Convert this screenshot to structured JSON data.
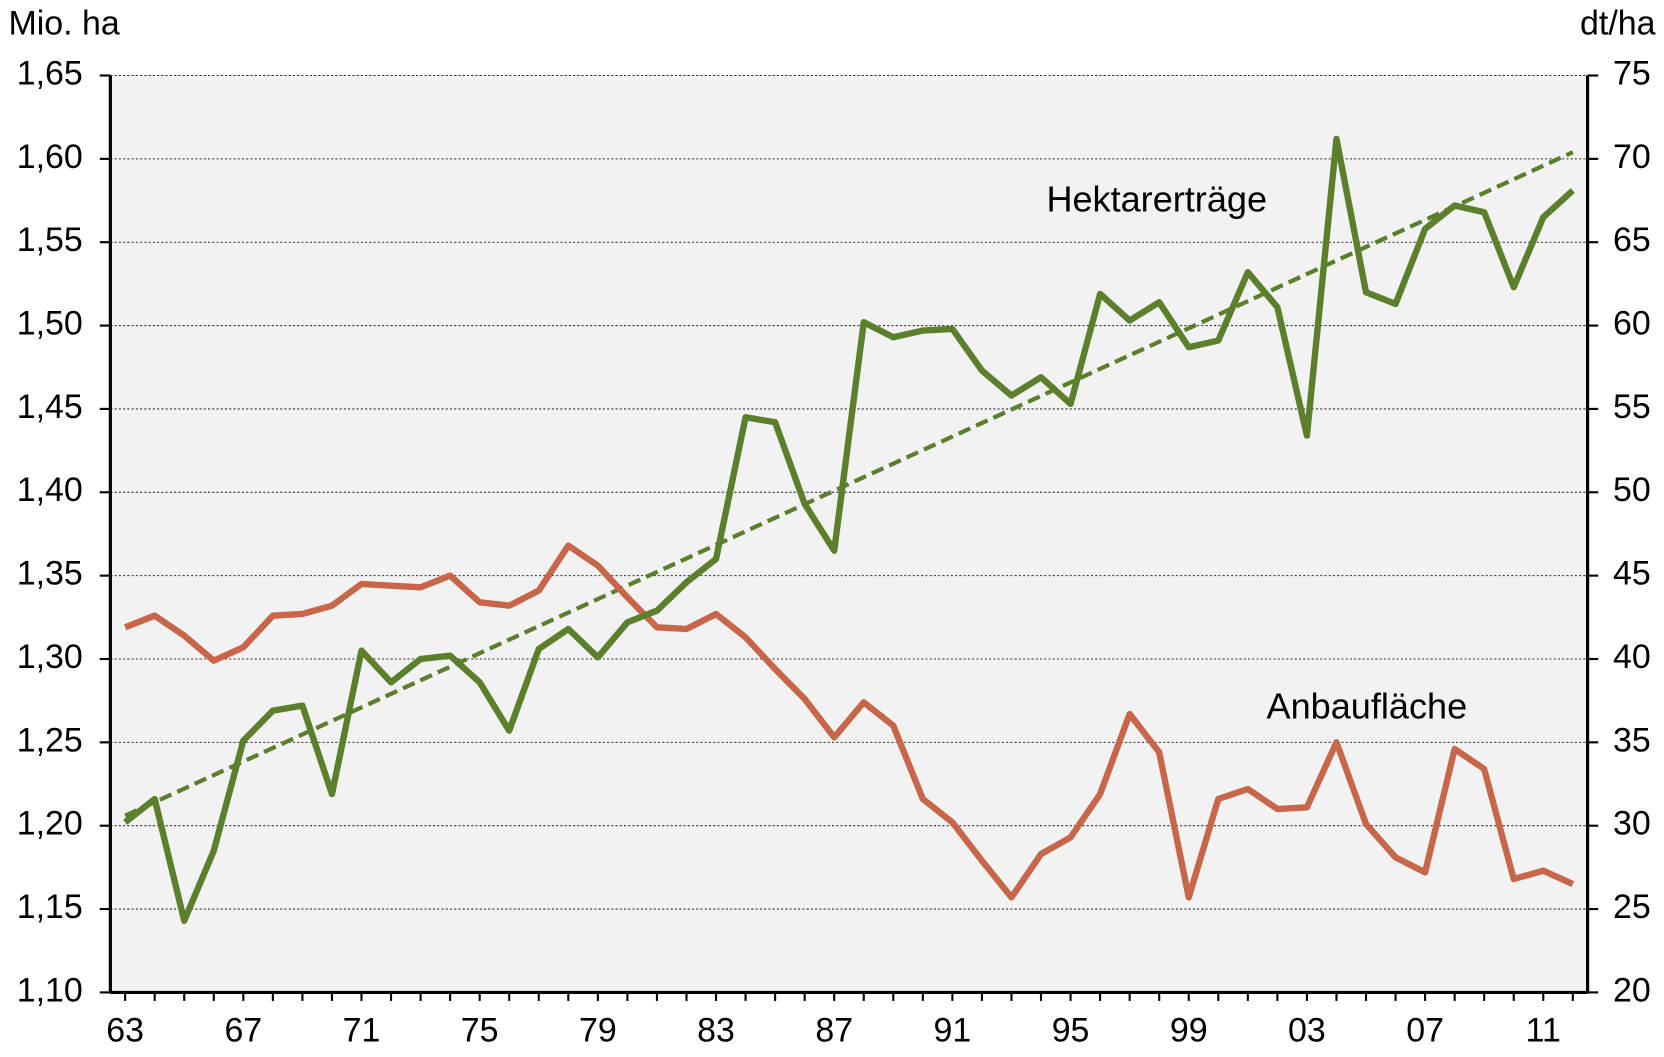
{
  "chart_data": {
    "type": "line",
    "y_label": "Mio. ha",
    "y2_label": "dt/ha",
    "categories": [
      "63",
      null,
      null,
      null,
      "67",
      null,
      null,
      null,
      "71",
      null,
      null,
      null,
      "75",
      null,
      null,
      null,
      "79",
      null,
      null,
      null,
      "83",
      null,
      null,
      null,
      "87",
      null,
      null,
      null,
      "91",
      null,
      null,
      null,
      "95",
      null,
      null,
      null,
      "99",
      null,
      null,
      null,
      "03",
      null,
      null,
      null,
      "07",
      null,
      null,
      null,
      "11",
      null
    ],
    "series": [
      {
        "name": "Anbaufläche",
        "color": "#c8664a",
        "values": [
          1.319,
          1.326,
          1.314,
          1.299,
          1.307,
          1.326,
          1.327,
          1.332,
          1.345,
          1.344,
          1.343,
          1.35,
          1.334,
          1.332,
          1.341,
          1.368,
          1.356,
          1.337,
          1.319,
          1.318,
          1.327,
          1.313,
          1.294,
          1.276,
          1.253,
          1.274,
          1.26,
          1.216,
          1.202,
          1.179,
          1.157,
          1.183,
          1.193,
          1.219,
          1.267,
          1.244,
          1.157,
          1.216,
          1.222,
          1.21,
          1.211,
          1.25,
          1.201,
          1.181,
          1.172,
          1.246,
          1.234,
          1.168,
          1.173,
          1.165
        ]
      },
      {
        "name": "Hektarerträge",
        "color": "#5b7f2a",
        "axis": "y2",
        "values": [
          30.2,
          31.6,
          24.3,
          28.5,
          35.1,
          36.9,
          37.2,
          31.9,
          40.5,
          38.6,
          40.0,
          40.2,
          38.6,
          35.7,
          40.6,
          41.8,
          40.1,
          42.2,
          42.9,
          44.6,
          46.0,
          54.5,
          54.2,
          49.3,
          46.5,
          60.2,
          59.3,
          59.7,
          59.8,
          57.3,
          55.8,
          56.9,
          55.3,
          61.9,
          60.3,
          61.4,
          58.7,
          59.1,
          63.2,
          61.1,
          53.4,
          71.2,
          62.0,
          61.3,
          65.8,
          67.2,
          66.8,
          62.3,
          66.5,
          68.1
        ]
      }
    ],
    "trend": {
      "color": "#5b7f2a",
      "axis": "y2",
      "dashed": true,
      "values": [
        30.6,
        70.4
      ]
    },
    "ylim": [
      1.1,
      1.65
    ],
    "yticks": [
      {
        "value": 1.1,
        "label": "1,10"
      },
      {
        "value": 1.15,
        "label": "1,15"
      },
      {
        "value": 1.2,
        "label": "1,20"
      },
      {
        "value": 1.25,
        "label": "1,25"
      },
      {
        "value": 1.3,
        "label": "1,30"
      },
      {
        "value": 1.35,
        "label": "1,35"
      },
      {
        "value": 1.4,
        "label": "1,40"
      },
      {
        "value": 1.45,
        "label": "1,45"
      },
      {
        "value": 1.5,
        "label": "1,50"
      },
      {
        "value": 1.55,
        "label": "1,55"
      },
      {
        "value": 1.6,
        "label": "1,60"
      },
      {
        "value": 1.65,
        "label": "1,65"
      }
    ],
    "y2lim": [
      20,
      75
    ],
    "y2ticks": [
      20,
      25,
      30,
      35,
      40,
      45,
      50,
      55,
      60,
      65,
      70,
      75
    ],
    "grid": true
  }
}
